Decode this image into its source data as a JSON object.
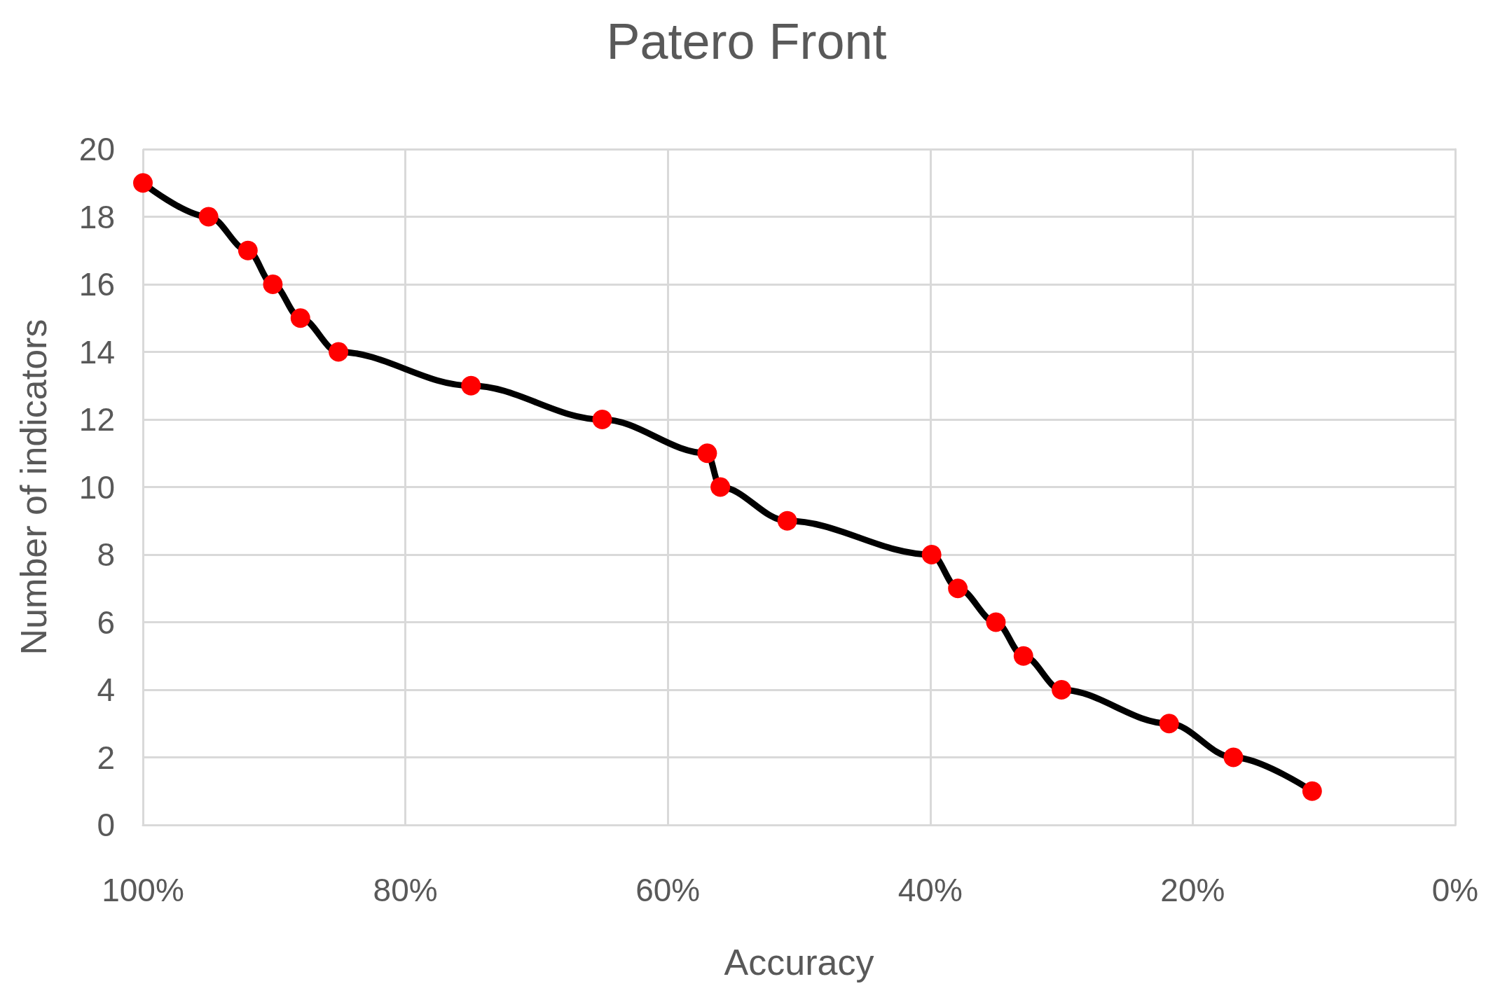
{
  "chart_data": {
    "type": "line",
    "title": "Patero Front",
    "xlabel": "Accuracy",
    "ylabel": "Number of indicators",
    "x": [
      100,
      95,
      92,
      90.1,
      88,
      85.1,
      75,
      65,
      57,
      56,
      50.9,
      39.9,
      37.9,
      35,
      32.9,
      30,
      21.8,
      16.9,
      10.9
    ],
    "series": [
      {
        "color": "#000000",
        "colors": [
          "#ff0000",
          "#ff0000",
          "#ff0000",
          "#ff0000",
          "#ff0000",
          "#ff0000",
          "#ff0000",
          "#ff0000",
          "#ff0000",
          "#ff0000",
          "#ff0000",
          "#ff0000",
          "#ff0000",
          "#ff0000",
          "#ff0000",
          "#ff0000",
          "#ff0000",
          "#ff0000",
          "#ff0000"
        ],
        "values": [
          19,
          18,
          17,
          16,
          15,
          14,
          13,
          12,
          11,
          10,
          9,
          8,
          7,
          6,
          5,
          4,
          3,
          2,
          1
        ]
      }
    ],
    "marker": "circle",
    "line_style": "solid",
    "grid": true,
    "xlim": [
      100,
      0
    ],
    "xticks": [
      {
        "value": 100,
        "label": "100%"
      },
      {
        "value": 80,
        "label": "80%"
      },
      {
        "value": 60,
        "label": "60%"
      },
      {
        "value": 40,
        "label": "40%"
      },
      {
        "value": 20,
        "label": "20%"
      },
      {
        "value": 0,
        "label": "0%"
      }
    ],
    "ylim": [
      0,
      20
    ],
    "yticks": [
      0,
      2,
      4,
      6,
      8,
      10,
      12,
      14,
      16,
      18,
      20
    ]
  }
}
